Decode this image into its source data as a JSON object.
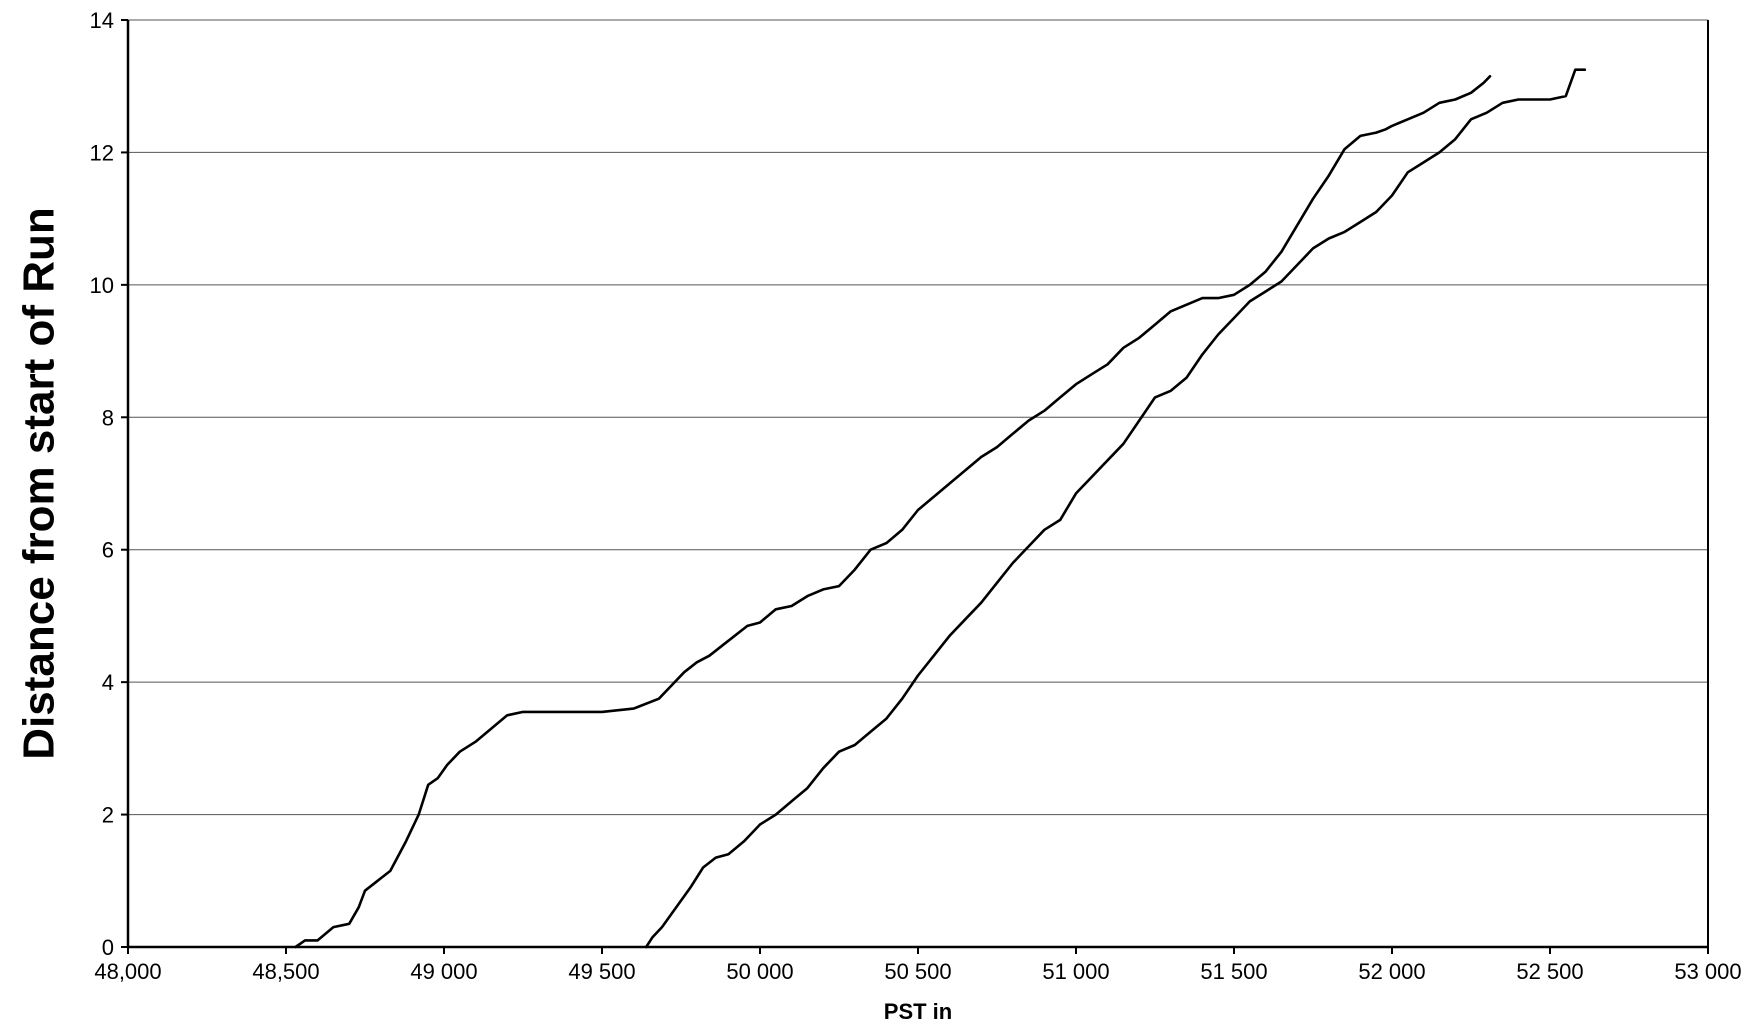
{
  "chart_data": {
    "type": "line",
    "title": "",
    "xlabel": "PST in",
    "ylabel": "Distance from start of Run",
    "xlim": [
      48000,
      53000
    ],
    "ylim": [
      0,
      14
    ],
    "x_ticks": [
      {
        "value": 48000,
        "label": "48,000"
      },
      {
        "value": 48500,
        "label": "48,500"
      },
      {
        "value": 49000,
        "label": "49 000"
      },
      {
        "value": 49500,
        "label": "49 500"
      },
      {
        "value": 50000,
        "label": "50 000"
      },
      {
        "value": 50500,
        "label": "50 500"
      },
      {
        "value": 51000,
        "label": "51 000"
      },
      {
        "value": 51500,
        "label": "51 500"
      },
      {
        "value": 52000,
        "label": "52 000"
      },
      {
        "value": 52500,
        "label": "52 500"
      },
      {
        "value": 53000,
        "label": "53 000"
      }
    ],
    "y_ticks": [
      {
        "value": 0,
        "label": "0"
      },
      {
        "value": 2,
        "label": "2"
      },
      {
        "value": 4,
        "label": "4"
      },
      {
        "value": 6,
        "label": "6"
      },
      {
        "value": 8,
        "label": "8"
      },
      {
        "value": 10,
        "label": "10"
      },
      {
        "value": 12,
        "label": "12"
      },
      {
        "value": 14,
        "label": "14"
      }
    ],
    "grid": "horizontal",
    "legend": "none",
    "series": [
      {
        "x": [
          48530,
          48560,
          48600,
          48650,
          48700,
          48730,
          48750,
          48790,
          48830,
          48880,
          48920,
          48950,
          48980,
          49010,
          49050,
          49100,
          49150,
          49200,
          49250,
          49300,
          49350,
          49400,
          49500,
          49600,
          49680,
          49720,
          49760,
          49800,
          49840,
          49880,
          49920,
          49960,
          50000,
          50050,
          50100,
          50150,
          50200,
          50250,
          50300,
          50350,
          50400,
          50450,
          50500,
          50550,
          50600,
          50650,
          50700,
          50750,
          50800,
          50850,
          50900,
          50950,
          51000,
          51050,
          51100,
          51150,
          51200,
          51250,
          51300,
          51350,
          51400,
          51450,
          51500,
          51550,
          51600,
          51650,
          51700,
          51750,
          51800,
          51850,
          51900,
          51950,
          51980,
          52000,
          52050,
          52100,
          52150,
          52200,
          52250,
          52290,
          52310
        ],
        "y": [
          0.0,
          0.1,
          0.1,
          0.3,
          0.35,
          0.6,
          0.85,
          1.0,
          1.15,
          1.6,
          2.0,
          2.45,
          2.55,
          2.75,
          2.95,
          3.1,
          3.3,
          3.5,
          3.55,
          3.55,
          3.55,
          3.55,
          3.55,
          3.6,
          3.75,
          3.95,
          4.15,
          4.3,
          4.4,
          4.55,
          4.7,
          4.85,
          4.9,
          5.1,
          5.15,
          5.3,
          5.4,
          5.45,
          5.7,
          6.0,
          6.1,
          6.3,
          6.6,
          6.8,
          7.0,
          7.2,
          7.4,
          7.55,
          7.75,
          7.95,
          8.1,
          8.3,
          8.5,
          8.65,
          8.8,
          9.05,
          9.2,
          9.4,
          9.6,
          9.7,
          9.8,
          9.8,
          9.85,
          10.0,
          10.2,
          10.5,
          10.9,
          11.3,
          11.65,
          12.05,
          12.25,
          12.3,
          12.35,
          12.4,
          12.5,
          12.6,
          12.75,
          12.8,
          12.9,
          13.05,
          13.15
        ]
      },
      {
        "x": [
          49640,
          49660,
          49690,
          49720,
          49750,
          49780,
          49820,
          49860,
          49900,
          49950,
          50000,
          50050,
          50100,
          50150,
          50200,
          50250,
          50300,
          50350,
          50400,
          50450,
          50500,
          50550,
          50600,
          50650,
          50700,
          50750,
          50800,
          50850,
          50900,
          50950,
          51000,
          51050,
          51100,
          51150,
          51200,
          51250,
          51300,
          51350,
          51400,
          51450,
          51500,
          51550,
          51600,
          51650,
          51700,
          51750,
          51800,
          51850,
          51900,
          51950,
          52000,
          52050,
          52100,
          52150,
          52200,
          52250,
          52300,
          52350,
          52400,
          52450,
          52500,
          52550,
          52580,
          52610
        ],
        "y": [
          0.0,
          0.15,
          0.3,
          0.5,
          0.7,
          0.9,
          1.2,
          1.35,
          1.4,
          1.6,
          1.85,
          2.0,
          2.2,
          2.4,
          2.7,
          2.95,
          3.05,
          3.25,
          3.45,
          3.75,
          4.1,
          4.4,
          4.7,
          4.95,
          5.2,
          5.5,
          5.8,
          6.05,
          6.3,
          6.45,
          6.85,
          7.1,
          7.35,
          7.6,
          7.95,
          8.3,
          8.4,
          8.6,
          8.95,
          9.25,
          9.5,
          9.75,
          9.9,
          10.05,
          10.3,
          10.55,
          10.7,
          10.8,
          10.95,
          11.1,
          11.35,
          11.7,
          11.85,
          12.0,
          12.2,
          12.5,
          12.6,
          12.75,
          12.8,
          12.8,
          12.8,
          12.85,
          13.25,
          13.25
        ]
      }
    ]
  }
}
